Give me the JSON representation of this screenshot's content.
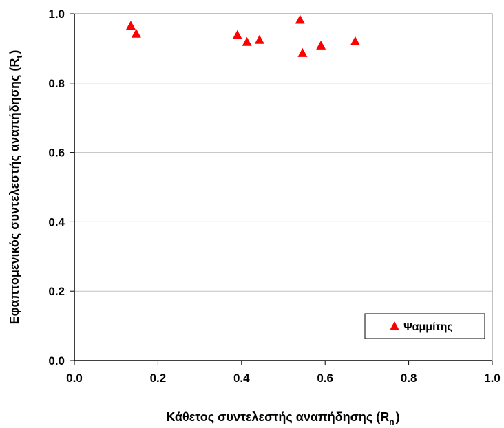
{
  "chart_data": {
    "type": "scatter",
    "title": "",
    "xlabel": {
      "main": "Κάθετος συντελεστής αναπήδησης (R",
      "sub": "n",
      "close": ")"
    },
    "ylabel": {
      "main": "Εφαπτομενικός συντελεστής αναπήδησης (R",
      "sub": "t",
      "close": ")"
    },
    "xlim": [
      0.0,
      1.0
    ],
    "ylim": [
      0.0,
      1.0
    ],
    "x_ticks": [
      "0.0",
      "0.2",
      "0.4",
      "0.6",
      "0.8",
      "1.0"
    ],
    "y_ticks": [
      "0.0",
      "0.2",
      "0.4",
      "0.6",
      "0.8",
      "1.0"
    ],
    "grid": "horizontal",
    "legend_position": "bottom-right",
    "series": [
      {
        "name": "Ψαμμίτης",
        "marker": "triangle",
        "color": "#ff0000",
        "points": [
          {
            "x": 0.135,
            "y": 0.965
          },
          {
            "x": 0.148,
            "y": 0.942
          },
          {
            "x": 0.39,
            "y": 0.938
          },
          {
            "x": 0.413,
            "y": 0.918
          },
          {
            "x": 0.443,
            "y": 0.924
          },
          {
            "x": 0.54,
            "y": 0.982
          },
          {
            "x": 0.546,
            "y": 0.886
          },
          {
            "x": 0.59,
            "y": 0.908
          },
          {
            "x": 0.672,
            "y": 0.92
          }
        ]
      }
    ]
  }
}
